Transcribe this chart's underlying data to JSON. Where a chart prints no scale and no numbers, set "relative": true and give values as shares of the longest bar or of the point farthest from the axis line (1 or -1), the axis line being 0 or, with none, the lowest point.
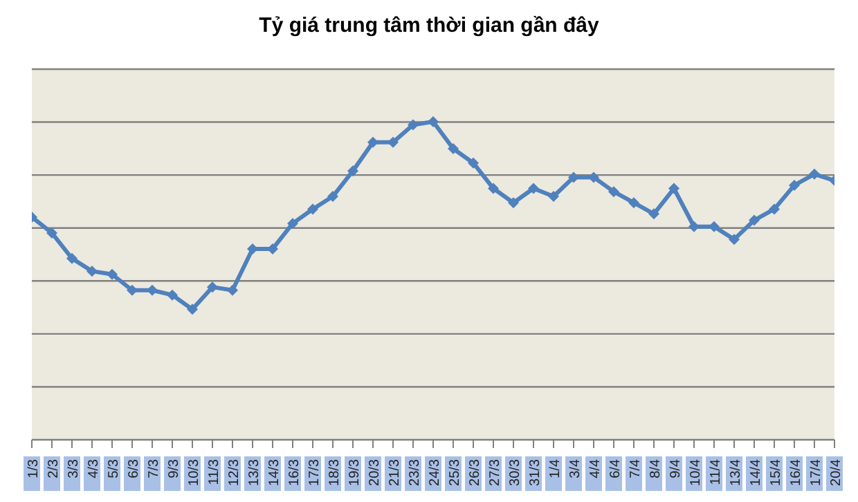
{
  "chart_data": {
    "type": "line",
    "title": "Tỷ giá trung tâm thời gian gần đây",
    "relative": true,
    "categories": [
      "1/3",
      "2/3",
      "3/3",
      "4/3",
      "5/3",
      "6/3",
      "7/3",
      "9/3",
      "10/3",
      "11/3",
      "12/3",
      "13/3",
      "14/3",
      "16/3",
      "17/3",
      "18/3",
      "19/3",
      "20/3",
      "21/3",
      "23/3",
      "24/3",
      "25/3",
      "26/3",
      "27/3",
      "30/3",
      "31/3",
      "1/4",
      "3/4",
      "4/4",
      "6/4",
      "7/4",
      "8/4",
      "9/4",
      "10/4",
      "11/4",
      "13/4",
      "14/4",
      "15/4",
      "16/4",
      "17/4",
      "20/4"
    ],
    "series": [
      {
        "color": "#4f81bd",
        "values": [
          0.7,
          0.65,
          0.57,
          0.53,
          0.52,
          0.47,
          0.47,
          0.455,
          0.41,
          0.48,
          0.47,
          0.6,
          0.6,
          0.68,
          0.725,
          0.765,
          0.845,
          0.935,
          0.935,
          0.99,
          1,
          0.915,
          0.87,
          0.79,
          0.745,
          0.79,
          0.765,
          0.825,
          0.825,
          0.78,
          0.745,
          0.71,
          0.79,
          0.67,
          0.67,
          0.63,
          0.69,
          0.725,
          0.8,
          0.835,
          0.815
        ]
      }
    ],
    "grid": "y",
    "legend": false,
    "marker": "diamond",
    "line_style": "solid"
  }
}
